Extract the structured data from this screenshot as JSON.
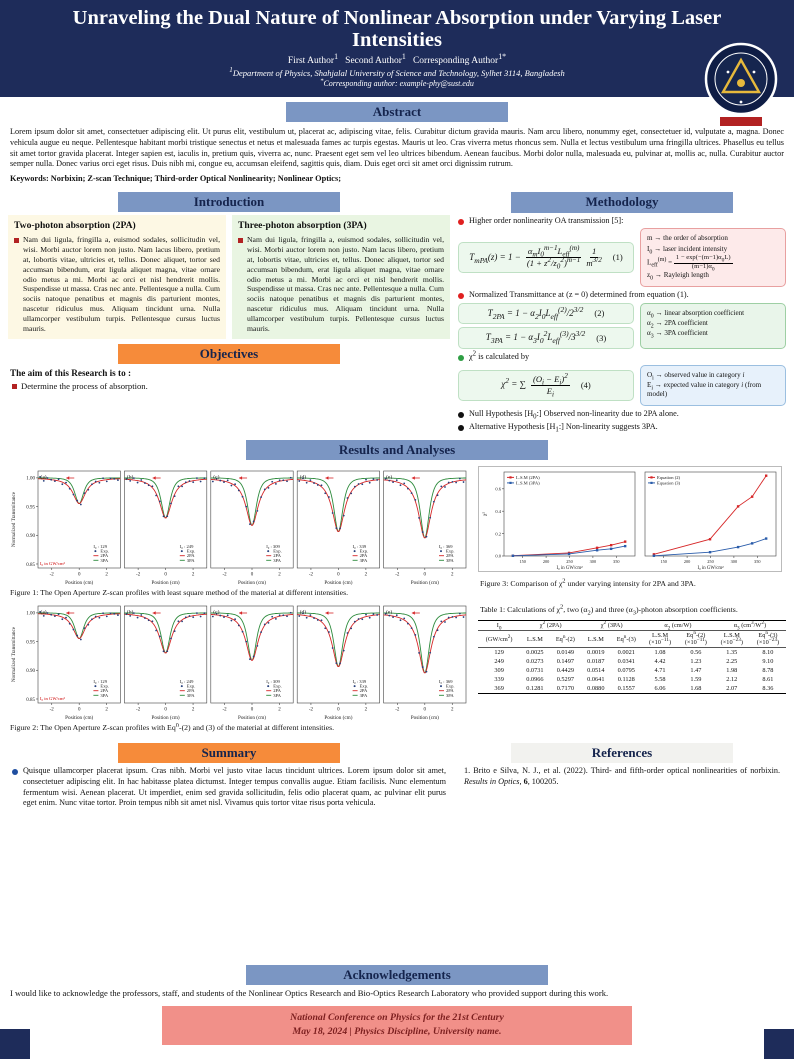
{
  "colors": {
    "navy": "#1e2c5a",
    "section_blue": "#7b96c3",
    "orange": "#f68b3a",
    "salmon": "#f19089",
    "footer_text": "#7c1f1f",
    "cream": "#fdf8e4",
    "light_green": "#e9f5e2",
    "eq_green_bg": "#edf8ee",
    "box_pink": "#fdeaea",
    "box_green": "#e9f5ea",
    "box_blue": "#e7f1fb",
    "ref_bar": "#f2f2ef",
    "dark_red": "#b22222",
    "blue_bullet": "#1f4ea0"
  },
  "header": {
    "title": "Unraveling the Dual Nature of Nonlinear Absorption under Varying Laser Intensities",
    "authors_html": "First Author<sup>1</sup>&nbsp;&nbsp;&nbsp;Second Author<sup>1</sup>&nbsp;&nbsp;&nbsp;Corresponding Author<sup>1*</sup>",
    "affiliation_html": "<sup>1</sup>Department of Physics, Shahjalal University of Science and Technology, Sylhet 3114, Bangladesh",
    "corresponding_html": "<sup>*</sup>Corresponding author: example-phy@sust.edu"
  },
  "abstract": {
    "heading": "Abstract",
    "body": "Lorem ipsum dolor sit amet, consectetuer adipiscing elit. Ut purus elit, vestibulum ut, placerat ac, adipiscing vitae, felis. Curabitur dictum gravida mauris. Nam arcu libero, nonummy eget, consectetuer id, vulputate a, magna. Donec vehicula augue eu neque. Pellentesque habitant morbi tristique senectus et netus et malesuada fames ac turpis egestas. Mauris ut leo. Cras viverra metus rhoncus sem. Nulla et lectus vestibulum urna fringilla ultrices. Phasellus eu tellus sit amet tortor gravida placerat. Integer sapien est, iaculis in, pretium quis, viverra ac, nunc. Praesent eget sem vel leo ultrices bibendum. Aenean faucibus. Morbi dolor nulla, malesuada eu, pulvinar at, mollis ac, nulla. Curabitur auctor semper nulla. Donec varius orci eget risus. Duis nibh mi, congue eu, accumsan eleifend, sagittis quis, diam. Duis eget orci sit amet orci dignissim rutrum.",
    "keywords": "Keywords: Norbixin; Z-scan Technique; Third-order Optical Nonlinearity; Nonlinear Optics;"
  },
  "introduction": {
    "heading": "Introduction",
    "col2pa": {
      "heading": "Two-photon absorption (2PA)",
      "body": "Nam dui ligula, fringilla a, euismod sodales, sollicitudin vel, wisi. Morbi auctor lorem non justo. Nam lacus libero, pretium at, lobortis vitae, ultricies et, tellus. Donec aliquet, tortor sed accumsan bibendum, erat ligula aliquet magna, vitae ornare odio metus a mi. Morbi ac orci et nisl hendrerit mollis. Suspendisse ut massa. Cras nec ante. Pellentesque a nulla. Cum sociis natoque penatibus et magnis dis parturient montes, nascetur ridiculus mus. Aliquam tincidunt urna. Nulla ullamcorper vestibulum turpis. Pellentesque cursus luctus mauris."
    },
    "col3pa": {
      "heading": "Three-photon absorption (3PA)",
      "body": "Nam dui ligula, fringilla a, euismod sodales, sollicitudin vel, wisi. Morbi auctor lorem non justo. Nam lacus libero, pretium at, lobortis vitae, ultricies et, tellus. Donec aliquet, tortor sed accumsan bibendum, erat ligula aliquet magna, vitae ornare odio metus a mi. Morbi ac orci et nisl hendrerit mollis. Suspendisse ut massa. Cras nec ante. Pellentesque a nulla. Cum sociis natoque penatibus et magnis dis parturient montes, nascetur ridiculus mus. Aliquam tincidunt urna. Nulla ullamcorper vestibulum turpis. Pellentesque cursus luctus mauris."
    }
  },
  "objectives": {
    "heading": "Objectives",
    "lead": "The aim of this Research is to :",
    "bullet": "Determine the process of absorption."
  },
  "methodology": {
    "heading": "Methodology",
    "b1": "Higher order nonlinearity OA transmission [5]:",
    "b2": "Normalized Transmittance at (z = 0) determined from equation (1).",
    "b3_html": "χ<sup>2</sup> is calculated by",
    "b4_html": "Null Hypothesis [H<sub>0</sub>:] Observed non-linearity due to 2PA alone.",
    "b5_html": "Alternative Hypothesis [H<sub>1</sub>:] Non-linearity suggests 3PA.",
    "eq1": {
      "lhs": "T<sub>mPA</sub>(z) = 1 −",
      "num": "α<sub>m</sub>I<sub>0</sub><sup>m−1</sup>L<sub>eff</sub><sup>(m)</sup>",
      "den": "(1 + z<sup>2</sup>/z<sub>0</sub><sup>2</sup>)<sup>m−1</sup>",
      "num2": "1",
      "den2": "m<sup>3/2</sup>",
      "label": "(1)"
    },
    "eq2": {
      "html": "T<sub>2PA</sub> = 1 − α<sub>2</sub>I<sub>0</sub>L<sub>eff</sub><sup>(2)</sup>/2<sup>3/2</sup>",
      "label": "(2)"
    },
    "eq3": {
      "html": "T<sub>3PA</sub> = 1 − α<sub>3</sub>I<sub>0</sub><sup>2</sup>L<sub>eff</sub><sup>(3)</sup>/3<sup>3/2</sup>",
      "label": "(3)"
    },
    "eq4": {
      "lhs": "χ<sup>2</sup> = ∑",
      "num": "(O<sub>i</sub> − E<sub>i</sub>)<sup>2</sup>",
      "den": "E<sub>i</sub>",
      "label": "(4)"
    },
    "box1": [
      "m → the order of absorption",
      "I<sub>0</sub> → laser incident intensity",
      "L<sub>eff</sub><sup>(m)</sup> = <span class=\"ifrac\"><span>1 − exp(−(m−1)α<sub>0</sub>L)</span><span>(m−1)α<sub>0</sub></span></span>",
      "z<sub>0</sub> → Rayleigh length"
    ],
    "box2": [
      "α<sub>0</sub> → linear absorption coefficient",
      "α<sub>2</sub> → 2PA coefficient",
      "α<sub>3</sub> → 3PA coefficient"
    ],
    "box3": [
      "O<sub>i</sub> → observed value in category <i>i</i>",
      "E<sub>i</sub> → expected value in category <i>i</i> (from model)"
    ]
  },
  "results": {
    "heading": "Results and Analyses",
    "fig1_caption_html": "Figure 1: The Open Aperture Z-scan profiles with least square method of the material at different intensities.",
    "fig2_caption_html": "Figure 2: The Open Aperture Z-scan profiles with Eq<sup>n</sup>-(2) and (3) of the material at different intensities.",
    "fig3_caption_html": "Figure 3: Comparison of χ<sup>2</sup> under varying intensity for 2PA and 3PA.",
    "table": {
      "caption_html": "Table 1: Calculations of χ<sup>2</sup>, two (α<sub>2</sub>) and three (α<sub>3</sub>)-photon absorption coefficients.",
      "g0": "I<sub>0</sub>",
      "g1": "χ<sup>2</sup> (2PA)",
      "g2": "χ<sup>2</sup> (3PA)",
      "g3": "α<sub>2</sub> (cm/W)",
      "g4": "α<sub>3</sub> (cm<sup>3</sup>/W<sup>2</sup>)",
      "sub_headers": [
        "(GW/cm<sup>2</sup>)",
        "L.S.M",
        "Eq<sup>n</sup>-(2)",
        "L.S.M",
        "Eq<sup>n</sup>-(3)",
        "L.S.M<br>(×10<sup>−11</sup>)",
        "Eq<sup>n</sup>-(2)<br>(×10<sup>−11</sup>)",
        "L.S.M<br>(×10<sup>−23</sup>)",
        "Eq<sup>n</sup>-(3)<br>(×10<sup>−23</sup>)"
      ],
      "rows": [
        [
          "129",
          "0.0025",
          "0.0149",
          "0.0019",
          "0.0021",
          "1.08",
          "0.56",
          "1.35",
          "8.10"
        ],
        [
          "249",
          "0.0273",
          "0.1497",
          "0.0187",
          "0.0341",
          "4.42",
          "1.23",
          "2.25",
          "9.10"
        ],
        [
          "309",
          "0.0731",
          "0.4429",
          "0.0514",
          "0.0795",
          "4.71",
          "1.47",
          "1.98",
          "8.78"
        ],
        [
          "339",
          "0.0966",
          "0.5297",
          "0.0641",
          "0.1128",
          "5.58",
          "1.59",
          "2.12",
          "8.61"
        ],
        [
          "369",
          "0.1281",
          "0.7170",
          "0.0880",
          "0.1557",
          "6.06",
          "1.68",
          "2.07",
          "8.36"
        ]
      ]
    }
  },
  "summary": {
    "heading": "Summary",
    "body": "Quisque ullamcorper placerat ipsum. Cras nibh. Morbi vel justo vitae lacus tincidunt ultrices. Lorem ipsum dolor sit amet, consectetuer adipiscing elit. In hac habitasse platea dictumst. Integer tempus convallis augue. Etiam facilisis. Nunc elementum fermentum wisi. Aenean placerat. Ut imperdiet, enim sed gravida sollicitudin, felis odio placerat quam, ac pulvinar elit purus eget enim. Nunc vitae tortor. Proin tempus nibh sit amet nisl. Vivamus quis tortor vitae risus porta vehicula."
  },
  "references": {
    "heading": "References",
    "item_html": "1. Brito e Silva, N. J., et al. (2022). Third- and fifth-order optical nonlinearities of norbixin. <i>Results in Optics</i>, <b>6</b>, 100205."
  },
  "acknowledgements": {
    "heading": "Acknowledgements",
    "body": "I would like to acknowledge the professors, staff, and students of the Nonlinear Optics Research and Bio-Optics Research Laboratory who provided support during this work."
  },
  "footer": {
    "line1": "National Conference on Physics for the 21st Century",
    "line2": "May 18, 2024  |  Physics Discipline, University name."
  },
  "chart_data": [
    {
      "id": "fig1",
      "type": "line",
      "title": "Open Aperture Z-scan profiles (least square method)",
      "xlabel": "Position (cm)",
      "ylabel": "Normalized Transmittance",
      "xlim": [
        -3,
        3
      ],
      "ylim": [
        0.843,
        1.012
      ],
      "xticks": [
        -2,
        0,
        2
      ],
      "yticks": [
        1.0,
        0.95,
        0.9,
        0.85
      ],
      "legend": [
        "Exp.",
        "2PA",
        "3PA"
      ],
      "intensity_label": "I₀ in GW/cm²",
      "colors": {
        "exp": "#27407c",
        "pa2": "#d62728",
        "pa3": "#2e8b3d"
      },
      "panels": [
        {
          "label": "(a)",
          "intensity": 129,
          "dip": 0.045
        },
        {
          "label": "(b)",
          "intensity": 249,
          "dip": 0.07
        },
        {
          "label": "(c)",
          "intensity": 309,
          "dip": 0.083
        },
        {
          "label": "(d)",
          "intensity": 339,
          "dip": 0.094
        },
        {
          "label": "(e)",
          "intensity": 369,
          "dip": 0.105
        }
      ]
    },
    {
      "id": "fig2",
      "type": "line",
      "title": "Open Aperture Z-scan profiles (Eqn-(2) and (3))",
      "xlabel": "Position (cm)",
      "ylabel": "Normalized Transmittance",
      "xlim": [
        -3,
        3
      ],
      "ylim": [
        0.843,
        1.012
      ],
      "xticks": [
        -2,
        0,
        2
      ],
      "yticks": [
        1.0,
        0.95,
        0.9,
        0.85
      ],
      "legend": [
        "Exp.",
        "2PA",
        "3PA"
      ],
      "intensity_label": "I₀ in GW/cm²",
      "colors": {
        "exp": "#27407c",
        "pa2": "#d62728",
        "pa3": "#2e8b3d"
      },
      "panels": [
        {
          "label": "(a)",
          "intensity": 129,
          "dip": 0.045
        },
        {
          "label": "(b)",
          "intensity": 249,
          "dip": 0.07
        },
        {
          "label": "(c)",
          "intensity": 309,
          "dip": 0.083
        },
        {
          "label": "(d)",
          "intensity": 339,
          "dip": 0.094
        },
        {
          "label": "(e)",
          "intensity": 369,
          "dip": 0.105
        }
      ]
    },
    {
      "id": "fig3",
      "type": "line",
      "title": "Comparison of χ² under varying intensity for 2PA and 3PA",
      "xlabel": "I₀ in GW/cm²",
      "ylabel": "χ²",
      "x": [
        129,
        249,
        309,
        339,
        369
      ],
      "xlim": [
        110,
        390
      ],
      "ylim": [
        0,
        0.75
      ],
      "xticks": [
        150,
        200,
        250,
        300,
        350
      ],
      "yticks": [
        0.0,
        0.2,
        0.4,
        0.6
      ],
      "panels": [
        {
          "series": [
            {
              "name": "L.S.M (2PA)",
              "color": "#d62728",
              "values": [
                0.0025,
                0.0273,
                0.0731,
                0.0966,
                0.1281
              ]
            },
            {
              "name": "L.S.M (3PA)",
              "color": "#2a5caa",
              "values": [
                0.0019,
                0.0187,
                0.0514,
                0.0641,
                0.088
              ]
            }
          ]
        },
        {
          "series": [
            {
              "name": "Equation (2)",
              "color": "#d62728",
              "values": [
                0.0149,
                0.1497,
                0.4429,
                0.5297,
                0.717
              ]
            },
            {
              "name": "Equation (3)",
              "color": "#2a5caa",
              "values": [
                0.0021,
                0.0341,
                0.0795,
                0.1128,
                0.1557
              ]
            }
          ]
        }
      ]
    }
  ]
}
